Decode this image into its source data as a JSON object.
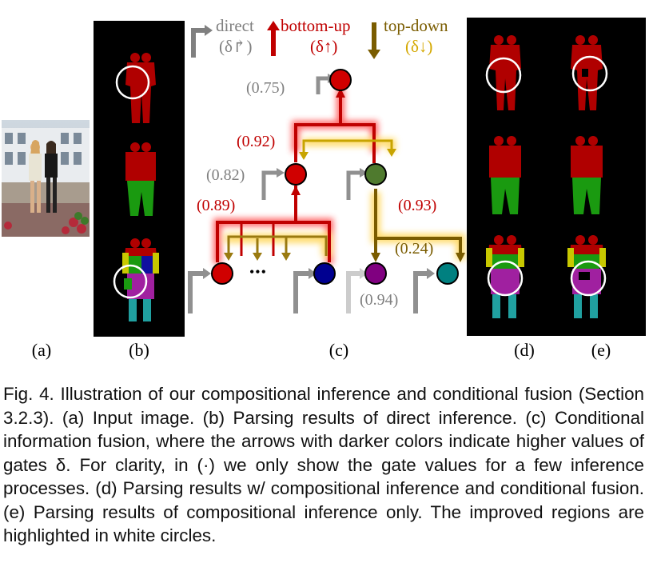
{
  "figure": {
    "legend": {
      "direct": {
        "label": "direct",
        "symbol": "(δ↱)"
      },
      "bottom_up": {
        "label": "bottom-up",
        "symbol": "(δ↑)"
      },
      "top_down": {
        "label": "top-down",
        "symbol": "(δ↓)"
      }
    },
    "gates": {
      "g075": "(0.75)",
      "g092": "(0.92)",
      "g082": "(0.82)",
      "g089": "(0.89)",
      "g093": "(0.93)",
      "g024": "(0.24)",
      "g094": "(0.94)"
    },
    "ellipsis": "•••",
    "panel_labels": {
      "a": "(a)",
      "b": "(b)",
      "c": "(c)",
      "d": "(d)",
      "e": "(e)"
    },
    "colors": {
      "red_node": "#d00000",
      "green_node": "#4f7a2e",
      "blue_node": "#000090",
      "purple_node": "#800080",
      "teal_node": "#008080",
      "parse_red": "#b00000",
      "parse_green": "#1a9a10",
      "parse_yellow": "#c8c800",
      "parse_purple": "#a020a0",
      "parse_teal": "#20a0a0",
      "parse_blue": "#1010a0"
    }
  },
  "caption": {
    "text": "Fig. 4. Illustration of our compositional inference and conditional fusion (Section 3.2.3). (a) Input image. (b) Parsing results of direct inference. (c) Conditional information fusion, where the arrows with darker colors indicate higher values of gates δ. For clarity, in (·) we only show the gate values for a few inference processes. (d) Parsing results w/ compositional inference and conditional fusion. (e) Parsing results of compositional inference only. The improved regions are highlighted in white circles."
  }
}
